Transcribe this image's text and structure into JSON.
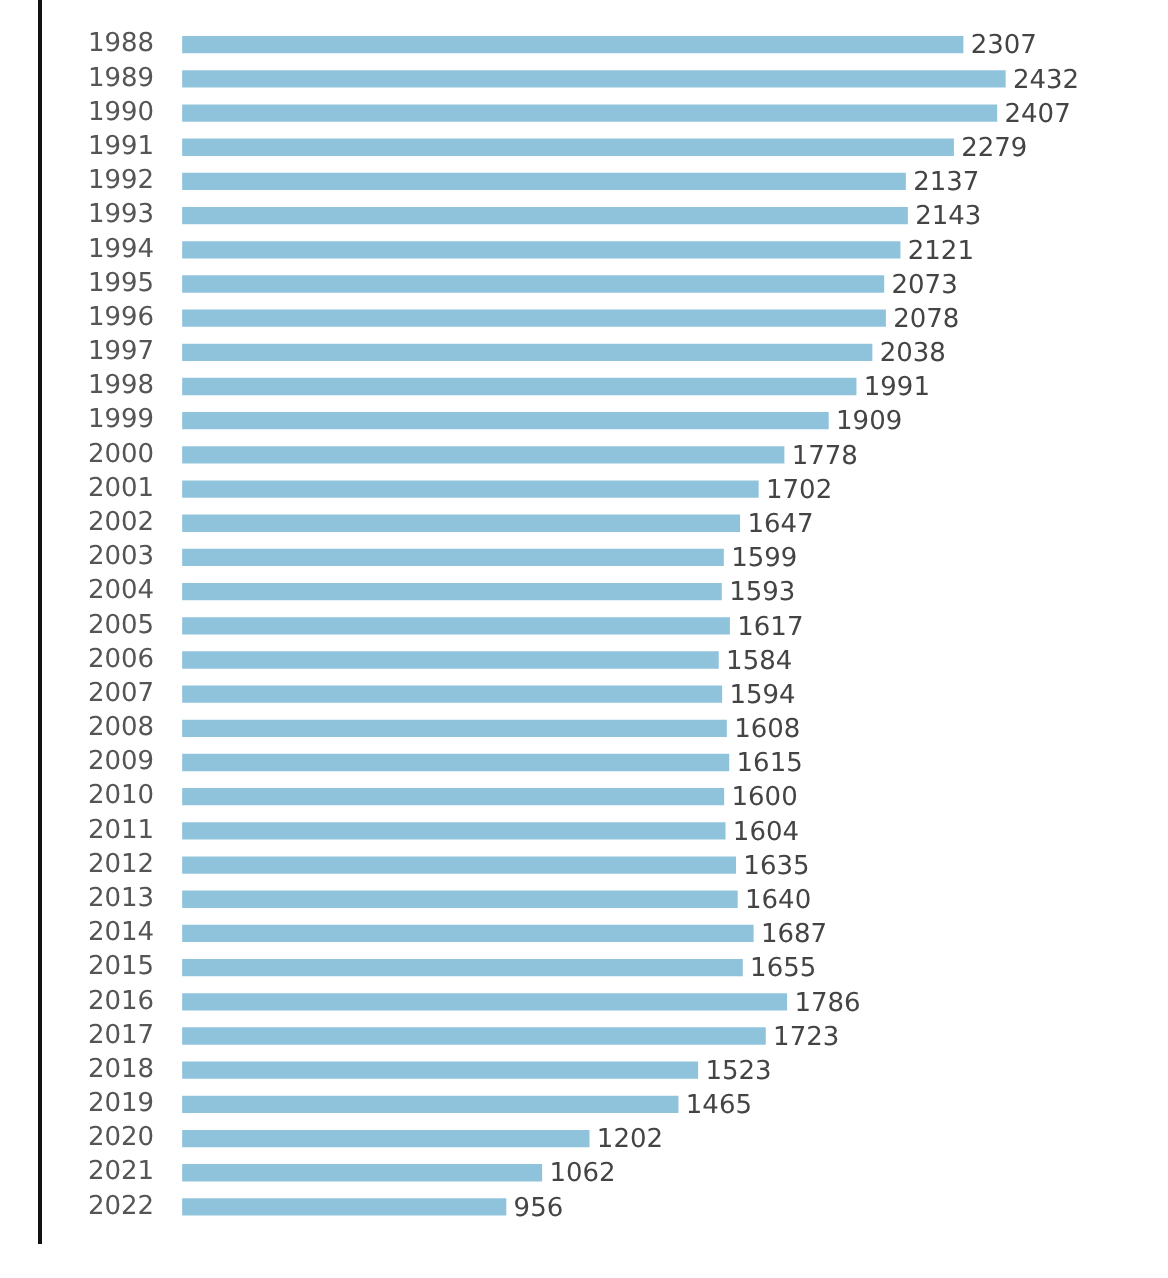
{
  "chart_data": {
    "type": "bar",
    "orientation": "horizontal",
    "categories": [
      "1988",
      "1989",
      "1990",
      "1991",
      "1992",
      "1993",
      "1994",
      "1995",
      "1996",
      "1997",
      "1998",
      "1999",
      "2000",
      "2001",
      "2002",
      "2003",
      "2004",
      "2005",
      "2006",
      "2007",
      "2008",
      "2009",
      "2010",
      "2011",
      "2012",
      "2013",
      "2014",
      "2015",
      "2016",
      "2017",
      "2018",
      "2019",
      "2020",
      "2021",
      "2022"
    ],
    "values": [
      2307,
      2432,
      2407,
      2279,
      2137,
      2143,
      2121,
      2073,
      2078,
      2038,
      1991,
      1909,
      1778,
      1702,
      1647,
      1599,
      1593,
      1617,
      1584,
      1594,
      1608,
      1615,
      1600,
      1604,
      1635,
      1640,
      1687,
      1655,
      1786,
      1723,
      1523,
      1465,
      1202,
      1062,
      956
    ],
    "color": "#8fc3dc",
    "data_labels": true,
    "tick_labels": "y"
  }
}
